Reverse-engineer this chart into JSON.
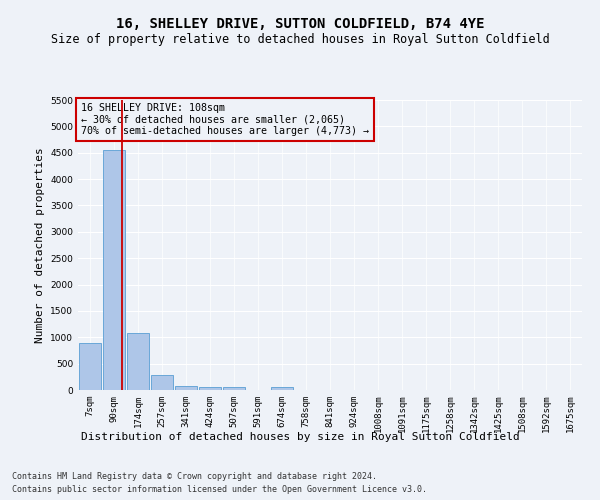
{
  "title": "16, SHELLEY DRIVE, SUTTON COLDFIELD, B74 4YE",
  "subtitle": "Size of property relative to detached houses in Royal Sutton Coldfield",
  "xlabel": "Distribution of detached houses by size in Royal Sutton Coldfield",
  "ylabel": "Number of detached properties",
  "footnote1": "Contains HM Land Registry data © Crown copyright and database right 2024.",
  "footnote2": "Contains public sector information licensed under the Open Government Licence v3.0.",
  "annotation_title": "16 SHELLEY DRIVE: 108sqm",
  "annotation_line1": "← 30% of detached houses are smaller (2,065)",
  "annotation_line2": "70% of semi-detached houses are larger (4,773) →",
  "bar_labels": [
    "7sqm",
    "90sqm",
    "174sqm",
    "257sqm",
    "341sqm",
    "424sqm",
    "507sqm",
    "591sqm",
    "674sqm",
    "758sqm",
    "841sqm",
    "924sqm",
    "1008sqm",
    "1091sqm",
    "1175sqm",
    "1258sqm",
    "1342sqm",
    "1425sqm",
    "1508sqm",
    "1592sqm",
    "1675sqm"
  ],
  "bar_values": [
    900,
    4550,
    1075,
    285,
    85,
    65,
    55,
    0,
    65,
    0,
    0,
    0,
    0,
    0,
    0,
    0,
    0,
    0,
    0,
    0,
    0
  ],
  "bar_color": "#aec6e8",
  "bar_edge_color": "#5a9fd4",
  "vline_x": 1.35,
  "vline_color": "#cc0000",
  "ylim": [
    0,
    5500
  ],
  "yticks": [
    0,
    500,
    1000,
    1500,
    2000,
    2500,
    3000,
    3500,
    4000,
    4500,
    5000,
    5500
  ],
  "bg_color": "#eef2f8",
  "grid_color": "#ffffff",
  "annotation_box_color": "#cc0000",
  "title_fontsize": 10,
  "subtitle_fontsize": 8.5,
  "tick_fontsize": 6.5,
  "ylabel_fontsize": 8,
  "xlabel_fontsize": 8,
  "footnote_fontsize": 6
}
